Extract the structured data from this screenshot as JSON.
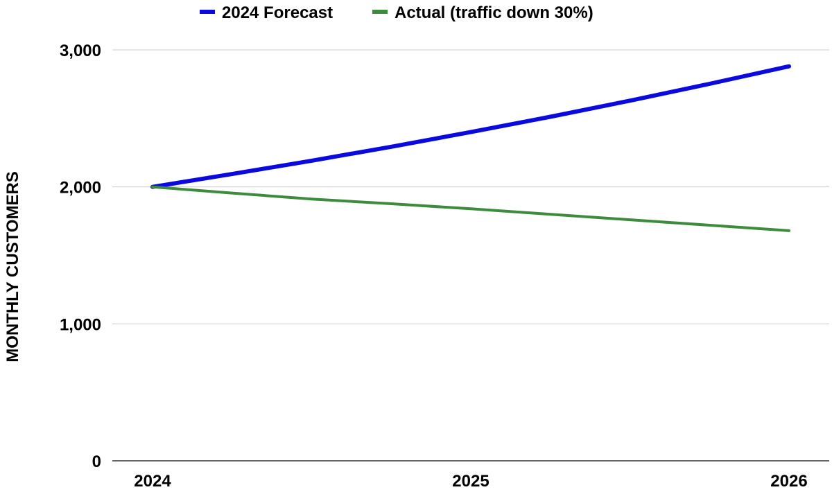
{
  "chart_data": {
    "type": "line",
    "title": "",
    "xlabel": "",
    "ylabel": "MONTHLY CUSTOMERS",
    "x": [
      2024,
      2024.25,
      2024.5,
      2024.75,
      2025,
      2025.25,
      2025.5,
      2025.75,
      2026
    ],
    "xticks": [
      "2024",
      "2025",
      "2026"
    ],
    "ylim": [
      0,
      3000
    ],
    "yticks": [
      "0",
      "1,000",
      "2,000",
      "3,000"
    ],
    "grid": true,
    "legend_position": "top",
    "series": [
      {
        "name": "2024 Forecast",
        "color": "#0a0ae0",
        "values": [
          2000,
          2094,
          2191,
          2293,
          2400,
          2512,
          2629,
          2752,
          2880
        ]
      },
      {
        "name": "Actual (traffic down 30%)",
        "color": "#3d8b3d",
        "values": [
          2000,
          1955,
          1911,
          1877,
          1840,
          1800,
          1760,
          1720,
          1680
        ]
      }
    ]
  }
}
